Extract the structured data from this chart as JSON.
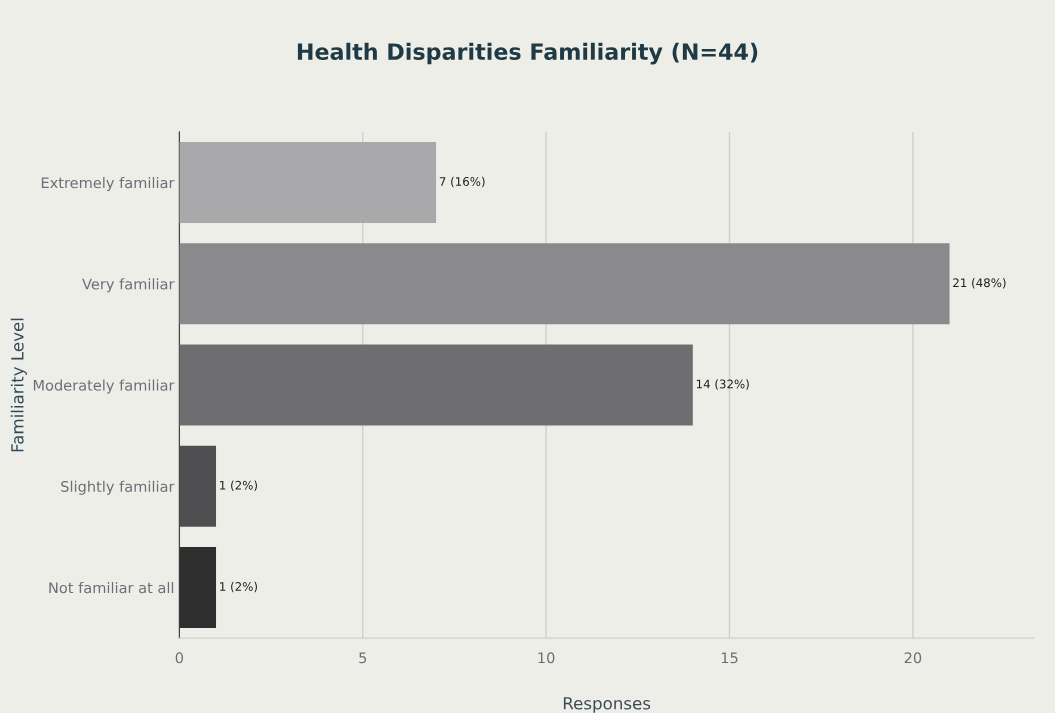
{
  "chart_data": {
    "type": "bar",
    "orientation": "horizontal",
    "title": "Health Disparities Familiarity (N=44)",
    "xlabel": "Responses",
    "ylabel": "Familiarity Level",
    "categories": [
      "Extremely familiar",
      "Very familiar",
      "Moderately familiar",
      "Slightly familiar",
      "Not familiar at all"
    ],
    "values": [
      7,
      21,
      14,
      1,
      1
    ],
    "colors": [
      "#a9a9ab",
      "#8a8a8c",
      "#6e6e70",
      "#4f4f51",
      "#2f2f2f"
    ],
    "value_labels": [
      "7 (16%)",
      "21 (48%)",
      "14 (32%)",
      "1 (2%)",
      "1 (2%)"
    ],
    "xlim": [
      0,
      23.3
    ],
    "xticks": [
      0,
      5,
      10,
      15,
      20
    ],
    "grid": "x"
  }
}
